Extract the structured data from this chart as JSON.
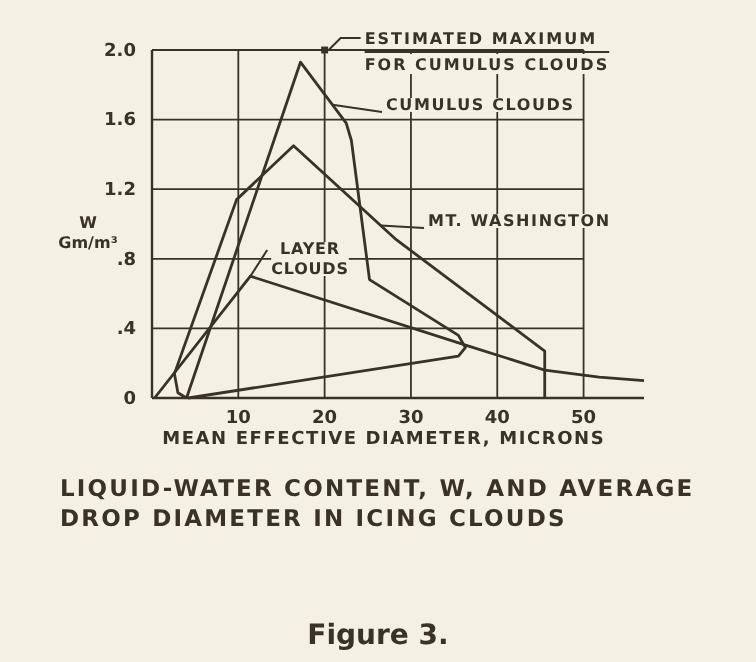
{
  "chart_data": {
    "type": "line",
    "title": "LIQUID-WATER CONTENT, W, AND AVERAGE\nDROP DIAMETER IN ICING CLOUDS",
    "xlabel": "MEAN EFFECTIVE DIAMETER, MICRONS",
    "ylabel": "W\nGm/m³",
    "annotations": [
      {
        "text": "ESTIMATED MAXIMUM\nFOR CUMULUS CLOUDS",
        "x": 20,
        "y": 2.0
      },
      "Figure 3."
    ],
    "xlim": [
      0,
      57
    ],
    "xticks": [
      10,
      20,
      30,
      40,
      50
    ],
    "ylim": [
      0,
      2.0
    ],
    "yticks": [
      0,
      {
        "value": 0.4,
        "label": ".4"
      },
      {
        "value": 0.8,
        "label": ".8"
      },
      {
        "value": 1.2,
        "label": "1.2"
      },
      {
        "value": 1.6,
        "label": "1.6"
      },
      {
        "value": 2.0,
        "label": "2.0"
      }
    ],
    "grid": true,
    "legend": "right",
    "line_style": "solid",
    "series": [
      {
        "name": "CUMULUS CLOUDS",
        "color": "#3a3128",
        "marker": "none",
        "x": [
          4.0,
          17.2,
          22.5,
          23.1,
          25.2,
          35.5,
          36.3,
          35.5,
          4.2
        ],
        "values": [
          0.0,
          1.93,
          1.58,
          1.48,
          0.68,
          0.36,
          0.29,
          0.24,
          0.0
        ]
      },
      {
        "name": "MT. WASHINGTON",
        "color": "#3a3128",
        "marker": "none",
        "x": [
          45.5,
          45.5,
          28.3,
          16.4,
          9.8,
          2.6,
          3.0,
          4.0
        ],
        "values": [
          0.0,
          0.27,
          0.91,
          1.45,
          1.14,
          0.14,
          0.03,
          0.0
        ]
      },
      {
        "name": "LAYER CLOUDS",
        "color": "#3a3128",
        "marker": "none",
        "x": [
          0.3,
          11.4,
          36.6,
          45.5,
          51.8,
          57.0
        ],
        "values": [
          0.0,
          0.7,
          0.3,
          0.16,
          0.12,
          0.1
        ]
      },
      {
        "color": "#3a3128",
        "type": "scatter",
        "marker": "square",
        "x": [
          20
        ],
        "values": [
          2.0
        ]
      }
    ]
  }
}
